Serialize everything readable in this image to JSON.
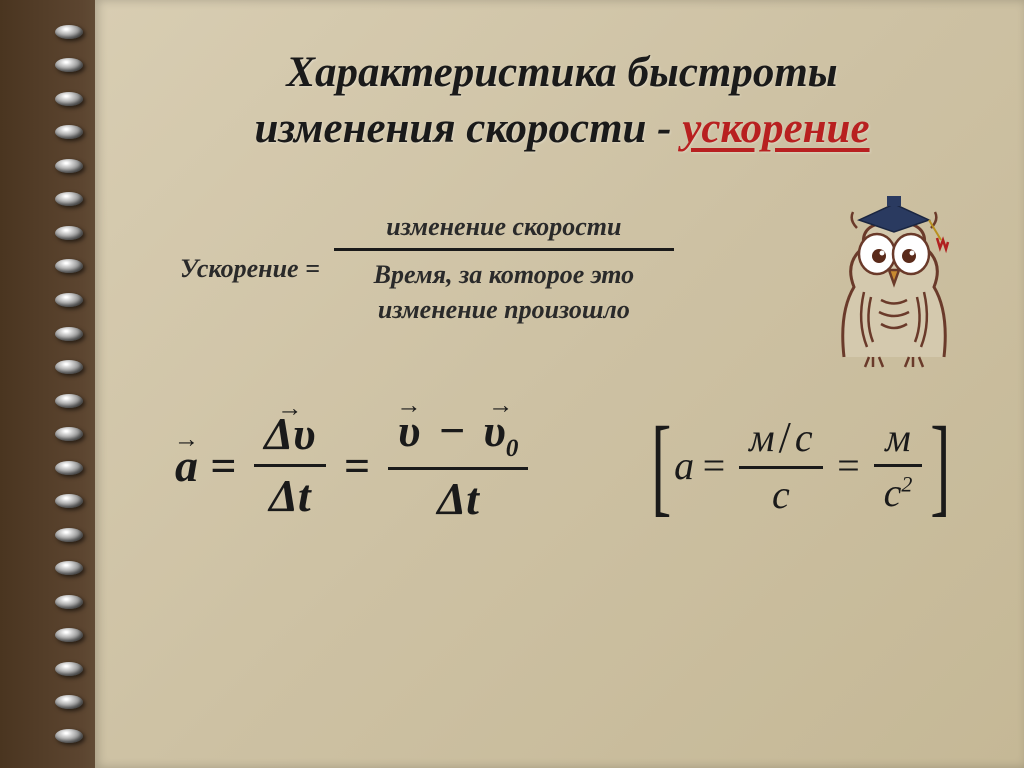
{
  "title": {
    "line1": "Характеристика быстроты",
    "line2_prefix": "изменения скорости - ",
    "line2_highlight": "ускорение",
    "title_fontsize": 43,
    "title_color": "#1a1a1a",
    "highlight_color": "#b82020"
  },
  "word_formula": {
    "lhs": "Ускорение =",
    "numerator": "изменение скорости",
    "denominator_line1": "Время, за которое это",
    "denominator_line2": "изменение произошло",
    "fontsize": 26,
    "bar_color": "#1a1a1a"
  },
  "symbolic_formula": {
    "a_symbol": "a",
    "eq": "=",
    "delta_v": "Δυ",
    "delta_t": "Δt",
    "v": "υ",
    "minus": "−",
    "v0_base": "υ",
    "v0_sub": "0"
  },
  "units_formula": {
    "a_symbol": "a",
    "eq": "=",
    "m": "м",
    "s": "с",
    "s2_base": "с",
    "s2_exp": "2"
  },
  "owl": {
    "body_color": "#b9a98a",
    "outline_color": "#6a3a2a",
    "eye_color": "#ffffff",
    "pupil_color": "#5a2a1a",
    "beak_color": "#c88a30",
    "cap_color": "#2a3a60",
    "tassel_color": "#b02020"
  },
  "style": {
    "page_bg_start": "#d8cdb2",
    "page_bg_end": "#c5b896",
    "text_color": "#1a1a1a",
    "ring_count": 22
  }
}
